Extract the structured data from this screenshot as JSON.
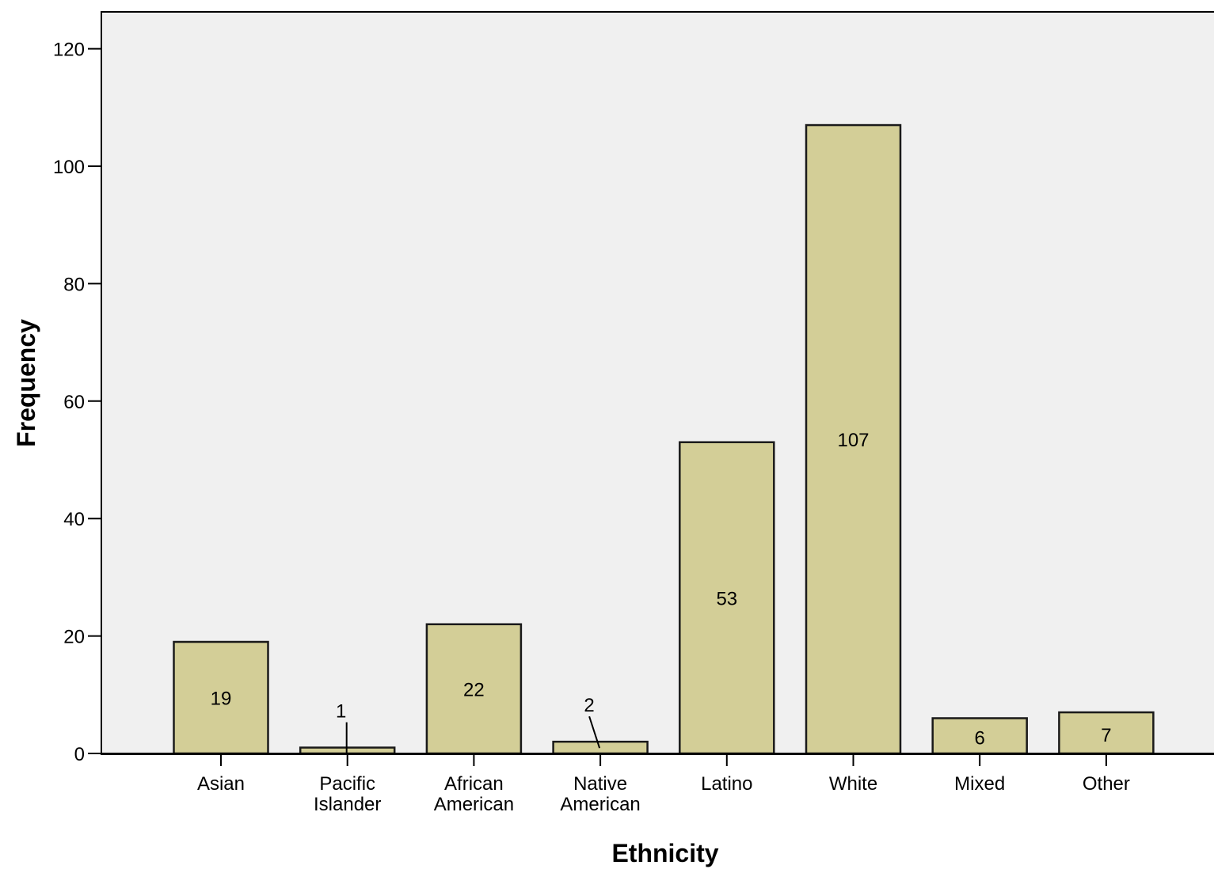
{
  "chart_data": {
    "type": "bar",
    "title": "",
    "xlabel": "Ethnicity",
    "ylabel": "Frequency",
    "ylim": [
      0,
      125
    ],
    "yticks": [
      0,
      20,
      40,
      60,
      80,
      100,
      120
    ],
    "grid": false,
    "categories": [
      [
        "Asian"
      ],
      [
        "Pacific",
        "Islander"
      ],
      [
        "African",
        "American"
      ],
      [
        "Native",
        "American"
      ],
      [
        "Latino"
      ],
      [
        "White"
      ],
      [
        "Mixed"
      ],
      [
        "Other"
      ]
    ],
    "values": [
      19,
      1,
      22,
      2,
      53,
      107,
      6,
      7
    ],
    "data_labels": [
      "19",
      "1",
      "22",
      "2",
      "53",
      "107",
      "6",
      "7"
    ],
    "colors": {
      "bar_fill": "#d3ce97",
      "bar_stroke": "#1a1a1a",
      "plot_background": "#f0f0f0",
      "axis": "#000000"
    }
  }
}
